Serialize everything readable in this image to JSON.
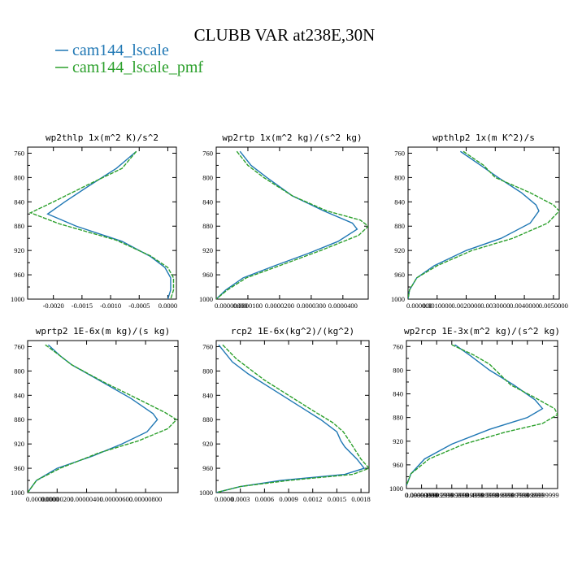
{
  "figure": {
    "title": "CLUBB VAR at238E,30N",
    "legend": [
      {
        "label": "cam144_lscale",
        "color": "#1f77b4"
      },
      {
        "label": "cam144_lscale_pmf",
        "color": "#2ca02c"
      }
    ]
  },
  "chart_data": [
    {
      "type": "line",
      "title": "wp2thlp  1x(m^2 K)/s^2",
      "ylim": [
        1000,
        750
      ],
      "yticks": [
        760,
        800,
        840,
        880,
        920,
        960,
        1000
      ],
      "xlim": [
        -0.00245,
        0.00015
      ],
      "xticks": [
        -0.002,
        -0.0015,
        -0.001,
        -0.0005,
        0.0
      ],
      "xtick_labels": [
        "-0.0020",
        "-0.0015",
        "-0.0010",
        "-0.0005",
        "0.0000"
      ],
      "series": [
        {
          "name": "cam144_lscale",
          "color": "#1f77b4",
          "points": [
            [
              -0.00055,
              757
            ],
            [
              -0.0009,
              785
            ],
            [
              -0.0014,
              815
            ],
            [
              -0.0018,
              840
            ],
            [
              -0.0021,
              860
            ],
            [
              -0.0016,
              880
            ],
            [
              -0.0008,
              905
            ],
            [
              -0.0003,
              930
            ],
            [
              -5e-05,
              948
            ],
            [
              5e-05,
              965
            ],
            [
              5e-05,
              985
            ],
            [
              0.0,
              1000
            ]
          ]
        },
        {
          "name": "cam144_lscale_pmf",
          "color": "#2ca02c",
          "points": [
            [
              -0.00055,
              757
            ],
            [
              -0.0008,
              785
            ],
            [
              -0.0014,
              812
            ],
            [
              -0.002,
              840
            ],
            [
              -0.0024,
              858
            ],
            [
              -0.0019,
              876
            ],
            [
              -0.0009,
              903
            ],
            [
              -0.0003,
              929
            ],
            [
              0.0,
              948
            ],
            [
              0.0001,
              965
            ],
            [
              0.0001,
              985
            ],
            [
              5e-05,
              1000
            ]
          ]
        }
      ]
    },
    {
      "type": "line",
      "title": "wp2rtp  1x(m^2 kg)/(s^2 kg)",
      "ylim": [
        1000,
        750
      ],
      "yticks": [
        760,
        800,
        840,
        880,
        920,
        960,
        1000
      ],
      "xlim": [
        0.0,
        4.8e-05
      ],
      "xticks": [
        0.0,
        1e-05,
        2e-05,
        3e-05,
        4e-05
      ],
      "xtick_labels": [
        "0.00000000",
        "0.0000100",
        "0.0000200",
        "0.0000300",
        "0.0000400"
      ],
      "series": [
        {
          "name": "cam144_lscale",
          "color": "#1f77b4",
          "points": [
            [
              7.5e-06,
              757
            ],
            [
              1.1e-05,
              780
            ],
            [
              1.6e-05,
              800
            ],
            [
              2.4e-05,
              830
            ],
            [
              3.4e-05,
              855
            ],
            [
              4.3e-05,
              875
            ],
            [
              4.45e-05,
              885
            ],
            [
              3.85e-05,
              905
            ],
            [
              2.9e-05,
              925
            ],
            [
              1.85e-05,
              945
            ],
            [
              8.5e-06,
              965
            ],
            [
              3e-06,
              985
            ],
            [
              0.0,
              1000
            ]
          ]
        },
        {
          "name": "cam144_lscale_pmf",
          "color": "#2ca02c",
          "points": [
            [
              6.5e-06,
              757
            ],
            [
              1e-05,
              780
            ],
            [
              1.5e-05,
              800
            ],
            [
              2.4e-05,
              830
            ],
            [
              3.5e-05,
              855
            ],
            [
              4.55e-05,
              870
            ],
            [
              4.8e-05,
              880
            ],
            [
              4.5e-05,
              895
            ],
            [
              3.3e-05,
              920
            ],
            [
              2e-05,
              945
            ],
            [
              9.5e-06,
              965
            ],
            [
              3.5e-06,
              985
            ],
            [
              0.0,
              1000
            ]
          ]
        }
      ]
    },
    {
      "type": "line",
      "title": "wpthlp2  1x(m K^2)/s",
      "ylim": [
        1000,
        750
      ],
      "yticks": [
        760,
        800,
        840,
        880,
        920,
        960,
        1000
      ],
      "xlim": [
        0.0,
        0.0052
      ],
      "xticks": [
        0.0,
        0.001,
        0.002,
        0.003,
        0.004,
        0.005
      ],
      "xtick_labels": [
        "0.000000",
        "0.0010000",
        "0.0020000",
        "0.0030000",
        "0.0040000",
        "0.0050000"
      ],
      "series": [
        {
          "name": "cam144_lscale",
          "color": "#1f77b4",
          "points": [
            [
              0.0018,
              757
            ],
            [
              0.0025,
              780
            ],
            [
              0.0031,
              800
            ],
            [
              0.0039,
              825
            ],
            [
              0.0044,
              845
            ],
            [
              0.0045,
              855
            ],
            [
              0.0042,
              875
            ],
            [
              0.0032,
              900
            ],
            [
              0.002,
              920
            ],
            [
              0.0009,
              945
            ],
            [
              0.0003,
              965
            ],
            [
              5e-05,
              985
            ],
            [
              0.0,
              1000
            ]
          ]
        },
        {
          "name": "cam144_lscale_pmf",
          "color": "#2ca02c",
          "points": [
            [
              0.0019,
              757
            ],
            [
              0.0026,
              780
            ],
            [
              0.003,
              800
            ],
            [
              0.0042,
              825
            ],
            [
              0.005,
              845
            ],
            [
              0.0052,
              855
            ],
            [
              0.0048,
              875
            ],
            [
              0.0036,
              900
            ],
            [
              0.0022,
              920
            ],
            [
              0.001,
              945
            ],
            [
              0.0003,
              965
            ],
            [
              5e-05,
              985
            ],
            [
              0.0,
              1000
            ]
          ]
        }
      ]
    },
    {
      "type": "line",
      "title": "wprtp2  1E-6x(m kg)/(s kg)",
      "ylim": [
        1000,
        750
      ],
      "yticks": [
        760,
        800,
        840,
        880,
        920,
        960,
        1000
      ],
      "xlim": [
        0.0,
        1.02e-05
      ],
      "xticks": [
        0.0,
        2e-06,
        4e-06,
        6e-06,
        8e-06
      ],
      "xtick_labels": [
        "0.00000000",
        "0.00000200",
        "0.00000400",
        "0.00000600",
        "0.00000800"
      ],
      "series": [
        {
          "name": "cam144_lscale",
          "color": "#1f77b4",
          "points": [
            [
              1.4e-06,
              757
            ],
            [
              2.2e-06,
              775
            ],
            [
              3e-06,
              790
            ],
            [
              5.2e-06,
              820
            ],
            [
              7e-06,
              845
            ],
            [
              8.5e-06,
              870
            ],
            [
              8.8e-06,
              880
            ],
            [
              8.1e-06,
              900
            ],
            [
              6.4e-06,
              920
            ],
            [
              4.4e-06,
              940
            ],
            [
              2e-06,
              960
            ],
            [
              6e-07,
              980
            ],
            [
              0.0,
              1000
            ]
          ]
        },
        {
          "name": "cam144_lscale_pmf",
          "color": "#2ca02c",
          "points": [
            [
              1.2e-06,
              757
            ],
            [
              2.2e-06,
              775
            ],
            [
              3e-06,
              790
            ],
            [
              5.3e-06,
              820
            ],
            [
              7.4e-06,
              845
            ],
            [
              9.3e-06,
              868
            ],
            [
              1.01e-05,
              880
            ],
            [
              9.5e-06,
              895
            ],
            [
              7.5e-06,
              915
            ],
            [
              4.8e-06,
              935
            ],
            [
              2.2e-06,
              960
            ],
            [
              6e-07,
              980
            ],
            [
              0.0,
              1000
            ]
          ]
        }
      ]
    },
    {
      "type": "line",
      "title": "rcp2  1E-6x(kg^2)/(kg^2)",
      "ylim": [
        1000,
        750
      ],
      "yticks": [
        760,
        800,
        840,
        880,
        920,
        960,
        1000
      ],
      "xlim": [
        0.0,
        0.0019
      ],
      "xticks": [
        0.0,
        0.0003,
        0.0006,
        0.0009,
        0.0012,
        0.0015,
        0.0018
      ],
      "xtick_labels": [
        "0.0000",
        "0.0003",
        "0.0006",
        "0.0009",
        "0.0012",
        "0.0015",
        "0.0018"
      ],
      "series": [
        {
          "name": "cam144_lscale",
          "color": "#1f77b4",
          "points": [
            [
              3e-05,
              757
            ],
            [
              0.0002,
              785
            ],
            [
              0.0004,
              805
            ],
            [
              0.0007,
              830
            ],
            [
              0.001,
              855
            ],
            [
              0.0013,
              880
            ],
            [
              0.0015,
              900
            ],
            [
              0.00155,
              915
            ],
            [
              0.0016,
              925
            ],
            [
              0.00175,
              945
            ],
            [
              0.00184,
              960
            ],
            [
              0.0016,
              970
            ],
            [
              0.0008,
              980
            ],
            [
              0.0003,
              990
            ],
            [
              0.0,
              1000
            ]
          ]
        },
        {
          "name": "cam144_lscale_pmf",
          "color": "#2ca02c",
          "points": [
            [
              8e-05,
              757
            ],
            [
              0.00025,
              780
            ],
            [
              0.0004,
              795
            ],
            [
              0.0006,
              815
            ],
            [
              0.0009,
              840
            ],
            [
              0.0012,
              865
            ],
            [
              0.00145,
              885
            ],
            [
              0.00158,
              900
            ],
            [
              0.00168,
              920
            ],
            [
              0.0018,
              945
            ],
            [
              0.0019,
              960
            ],
            [
              0.0017,
              970
            ],
            [
              0.0009,
              980
            ],
            [
              0.0003,
              990
            ],
            [
              0.0,
              1000
            ]
          ]
        }
      ]
    },
    {
      "type": "line",
      "title": "wp2rcp  1E-3x(m^2 kg)/(s^2 kg)",
      "ylim": [
        1000,
        750
      ],
      "yticks": [
        760,
        800,
        840,
        880,
        920,
        960,
        1000
      ],
      "xlim": [
        0.0,
        1.0
      ],
      "xticks": [
        0.0,
        0.1,
        0.2,
        0.3,
        0.4,
        0.5,
        0.6,
        0.7,
        0.8,
        0.9
      ],
      "xtick_labels": [
        "0.00000000",
        "0.09999999",
        "0.19999999",
        "0.29999999",
        "0.39999999",
        "0.49999999",
        "0.59999999",
        "0.69999999",
        "0.79999999",
        "0.89999999"
      ],
      "series": [
        {
          "name": "cam144_lscale",
          "color": "#1f77b4",
          "points": [
            [
              0.32,
              757
            ],
            [
              0.42,
              775
            ],
            [
              0.55,
              800
            ],
            [
              0.71,
              825
            ],
            [
              0.85,
              850
            ],
            [
              0.9,
              865
            ],
            [
              0.8,
              880
            ],
            [
              0.55,
              900
            ],
            [
              0.3,
              925
            ],
            [
              0.12,
              950
            ],
            [
              0.03,
              975
            ],
            [
              0.0,
              995
            ]
          ]
        },
        {
          "name": "cam144_lscale_pmf",
          "color": "#2ca02c",
          "points": [
            [
              0.3,
              757
            ],
            [
              0.45,
              775
            ],
            [
              0.55,
              790
            ],
            [
              0.69,
              825
            ],
            [
              0.84,
              845
            ],
            [
              0.98,
              865
            ],
            [
              1.0,
              875
            ],
            [
              0.9,
              890
            ],
            [
              0.65,
              905
            ],
            [
              0.38,
              925
            ],
            [
              0.15,
              950
            ],
            [
              0.03,
              975
            ],
            [
              0.0,
              995
            ]
          ]
        }
      ]
    }
  ]
}
